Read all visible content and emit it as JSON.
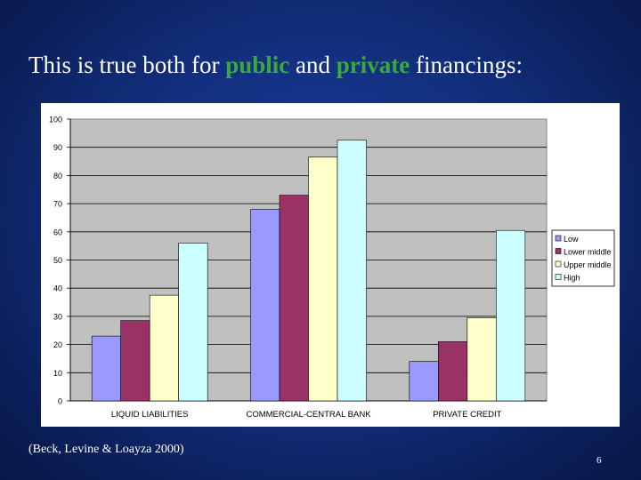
{
  "slide": {
    "title_parts": [
      "This is true both for ",
      "public",
      " and ",
      "private",
      " financings:"
    ],
    "citation": "(Beck, Levine & Loayza 2000)",
    "page_number": "6"
  },
  "colors": {
    "title_highlight": "#3aa93a",
    "plot_background": "#c0c0c0",
    "series": [
      "#9999ff",
      "#993366",
      "#ffffcc",
      "#ccffff"
    ]
  },
  "chart_data": {
    "type": "bar",
    "categories": [
      "LIQUID LIABILITIES",
      "COMMERCIAL-CENTRAL BANK",
      "PRIVATE CREDIT"
    ],
    "series": [
      {
        "name": "Low",
        "values": [
          23,
          68,
          14
        ]
      },
      {
        "name": "Lower middle",
        "values": [
          28.5,
          73,
          21
        ]
      },
      {
        "name": "Upper middle",
        "values": [
          37.5,
          86.5,
          29.5
        ]
      },
      {
        "name": "High",
        "values": [
          56,
          92.5,
          60.5
        ]
      }
    ],
    "yticks": [
      0,
      10,
      20,
      30,
      40,
      50,
      60,
      70,
      80,
      90,
      100
    ],
    "ylim": [
      0,
      100
    ],
    "grid": true,
    "legend": "right"
  }
}
